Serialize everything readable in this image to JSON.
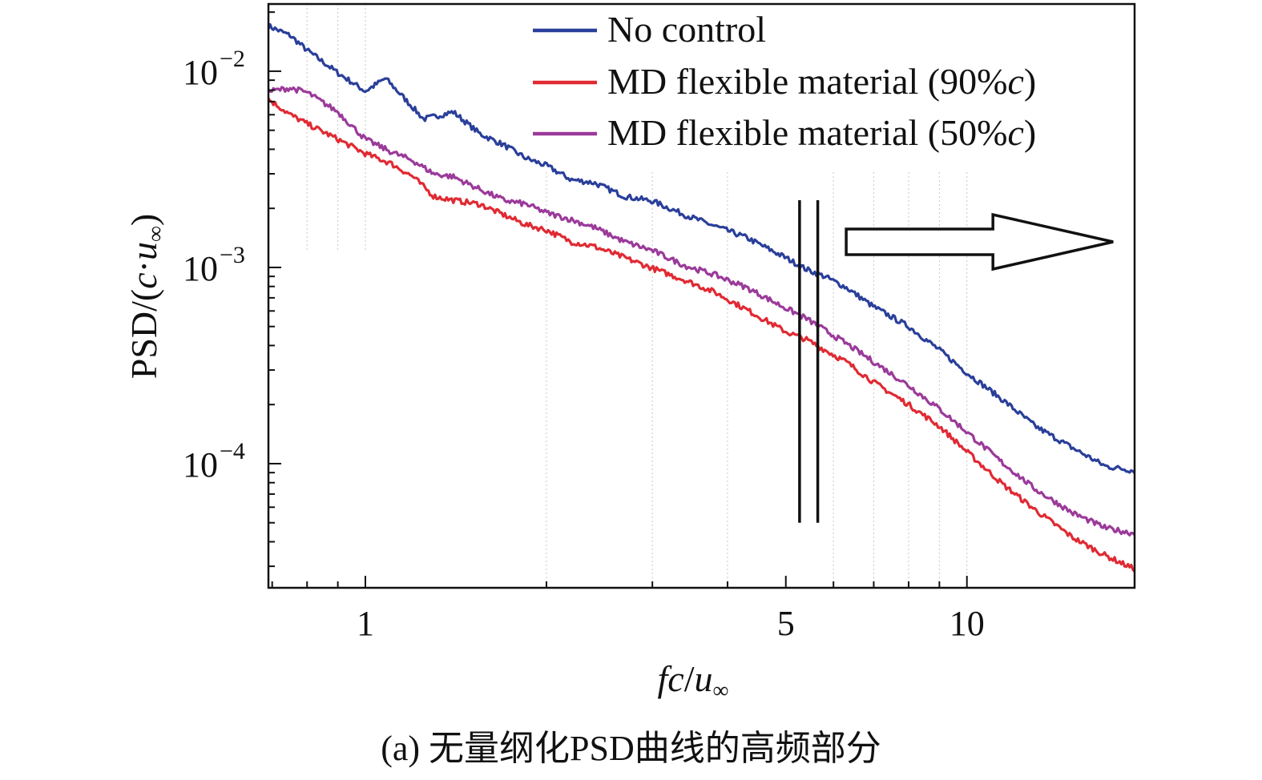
{
  "caption": "(a) 无量纲化PSD曲线的高频部分",
  "chart_data": {
    "type": "line",
    "xscale": "log",
    "yscale": "log",
    "xlim": [
      0.69,
      19.0
    ],
    "ylim": [
      2.33e-05,
      0.022
    ],
    "xticks": [
      {
        "value": 1,
        "label": "1"
      },
      {
        "value": 5,
        "label": "5"
      },
      {
        "value": 10,
        "label": "10"
      }
    ],
    "yticks": [
      {
        "value": 0.01,
        "base": "10",
        "exp": "−2"
      },
      {
        "value": 0.001,
        "base": "10",
        "exp": "−3"
      },
      {
        "value": 0.0001,
        "base": "10",
        "exp": "−4"
      }
    ],
    "xlabel": {
      "main": "fc",
      "sep": "/",
      "sub": "u",
      "inf": "∞"
    },
    "ylabel": {
      "prefix": "PSD/(",
      "c": "c",
      "dot": "·",
      "u": "u",
      "inf": "∞",
      "suffix": ")"
    },
    "legend_position": "top-right",
    "series": [
      {
        "name": "No control",
        "color": "#2a3f9a",
        "x": [
          0.69,
          0.75,
          0.8,
          0.9,
          1.0,
          1.08,
          1.15,
          1.25,
          1.4,
          1.55,
          1.7,
          1.85,
          2.0,
          2.2,
          2.4,
          2.7,
          3.0,
          3.4,
          3.8,
          4.3,
          5.0,
          5.4,
          5.8,
          6.3,
          7.0,
          8.0,
          9.0,
          10.0,
          11.5,
          13.0,
          15.0,
          17.0,
          19.0
        ],
        "y": [
          0.017,
          0.0152,
          0.0128,
          0.0098,
          0.0079,
          0.0092,
          0.0075,
          0.0057,
          0.0062,
          0.0048,
          0.0042,
          0.0036,
          0.0033,
          0.0028,
          0.0027,
          0.0023,
          0.00218,
          0.00185,
          0.00163,
          0.00142,
          0.00112,
          0.00098,
          0.0009,
          0.00079,
          0.00063,
          0.0005,
          0.00038,
          0.00029,
          0.00021,
          0.000155,
          0.00012,
          9.7e-05,
          9.2e-05
        ]
      },
      {
        "name": "MD flexible material (90%c)",
        "color": "#e02a33",
        "x": [
          0.69,
          0.75,
          0.8,
          0.9,
          1.0,
          1.1,
          1.2,
          1.3,
          1.4,
          1.55,
          1.7,
          1.85,
          2.0,
          2.2,
          2.4,
          2.7,
          3.0,
          3.4,
          3.8,
          4.3,
          5.0,
          5.4,
          5.8,
          6.3,
          7.0,
          8.0,
          9.0,
          10.0,
          11.5,
          13.0,
          15.0,
          17.0,
          19.0
        ],
        "y": [
          0.0072,
          0.006,
          0.0054,
          0.0045,
          0.0038,
          0.0034,
          0.0029,
          0.0023,
          0.0022,
          0.0021,
          0.00185,
          0.00165,
          0.00155,
          0.00135,
          0.00128,
          0.00112,
          0.00099,
          0.00086,
          0.00075,
          0.00061,
          0.00047,
          0.00043,
          0.00038,
          0.00033,
          0.00026,
          0.0002,
          0.000155,
          0.000115,
          7.8e-05,
          5.8e-05,
          4.2e-05,
          3.4e-05,
          2.9e-05
        ]
      },
      {
        "name": "MD flexible material (50%c)",
        "color": "#9b3a9a",
        "x": [
          0.69,
          0.75,
          0.8,
          0.9,
          1.0,
          1.1,
          1.2,
          1.3,
          1.4,
          1.55,
          1.7,
          1.85,
          2.0,
          2.2,
          2.4,
          2.7,
          3.0,
          3.4,
          3.8,
          4.3,
          5.0,
          5.4,
          5.8,
          6.3,
          7.0,
          8.0,
          9.0,
          10.0,
          11.5,
          13.0,
          15.0,
          17.0,
          19.0
        ],
        "y": [
          0.0079,
          0.0082,
          0.0078,
          0.0062,
          0.0045,
          0.0039,
          0.0035,
          0.003,
          0.0029,
          0.0025,
          0.0022,
          0.0021,
          0.0019,
          0.00175,
          0.0016,
          0.00135,
          0.00122,
          0.00102,
          0.00092,
          0.00079,
          0.00062,
          0.00055,
          0.00048,
          0.00041,
          0.00033,
          0.00025,
          0.00019,
          0.000145,
          0.0001,
          7.4e-05,
          5.6e-05,
          4.7e-05,
          4.4e-05
        ]
      }
    ],
    "annotations": [
      {
        "type": "vertical-break-lines",
        "x": [
          5.27,
          5.65
        ],
        "y_from": 5e-05,
        "y_to": 0.0022
      },
      {
        "type": "arrow-right",
        "from_x": 6.3,
        "to_x": 17.5,
        "y": 0.00135
      }
    ]
  }
}
